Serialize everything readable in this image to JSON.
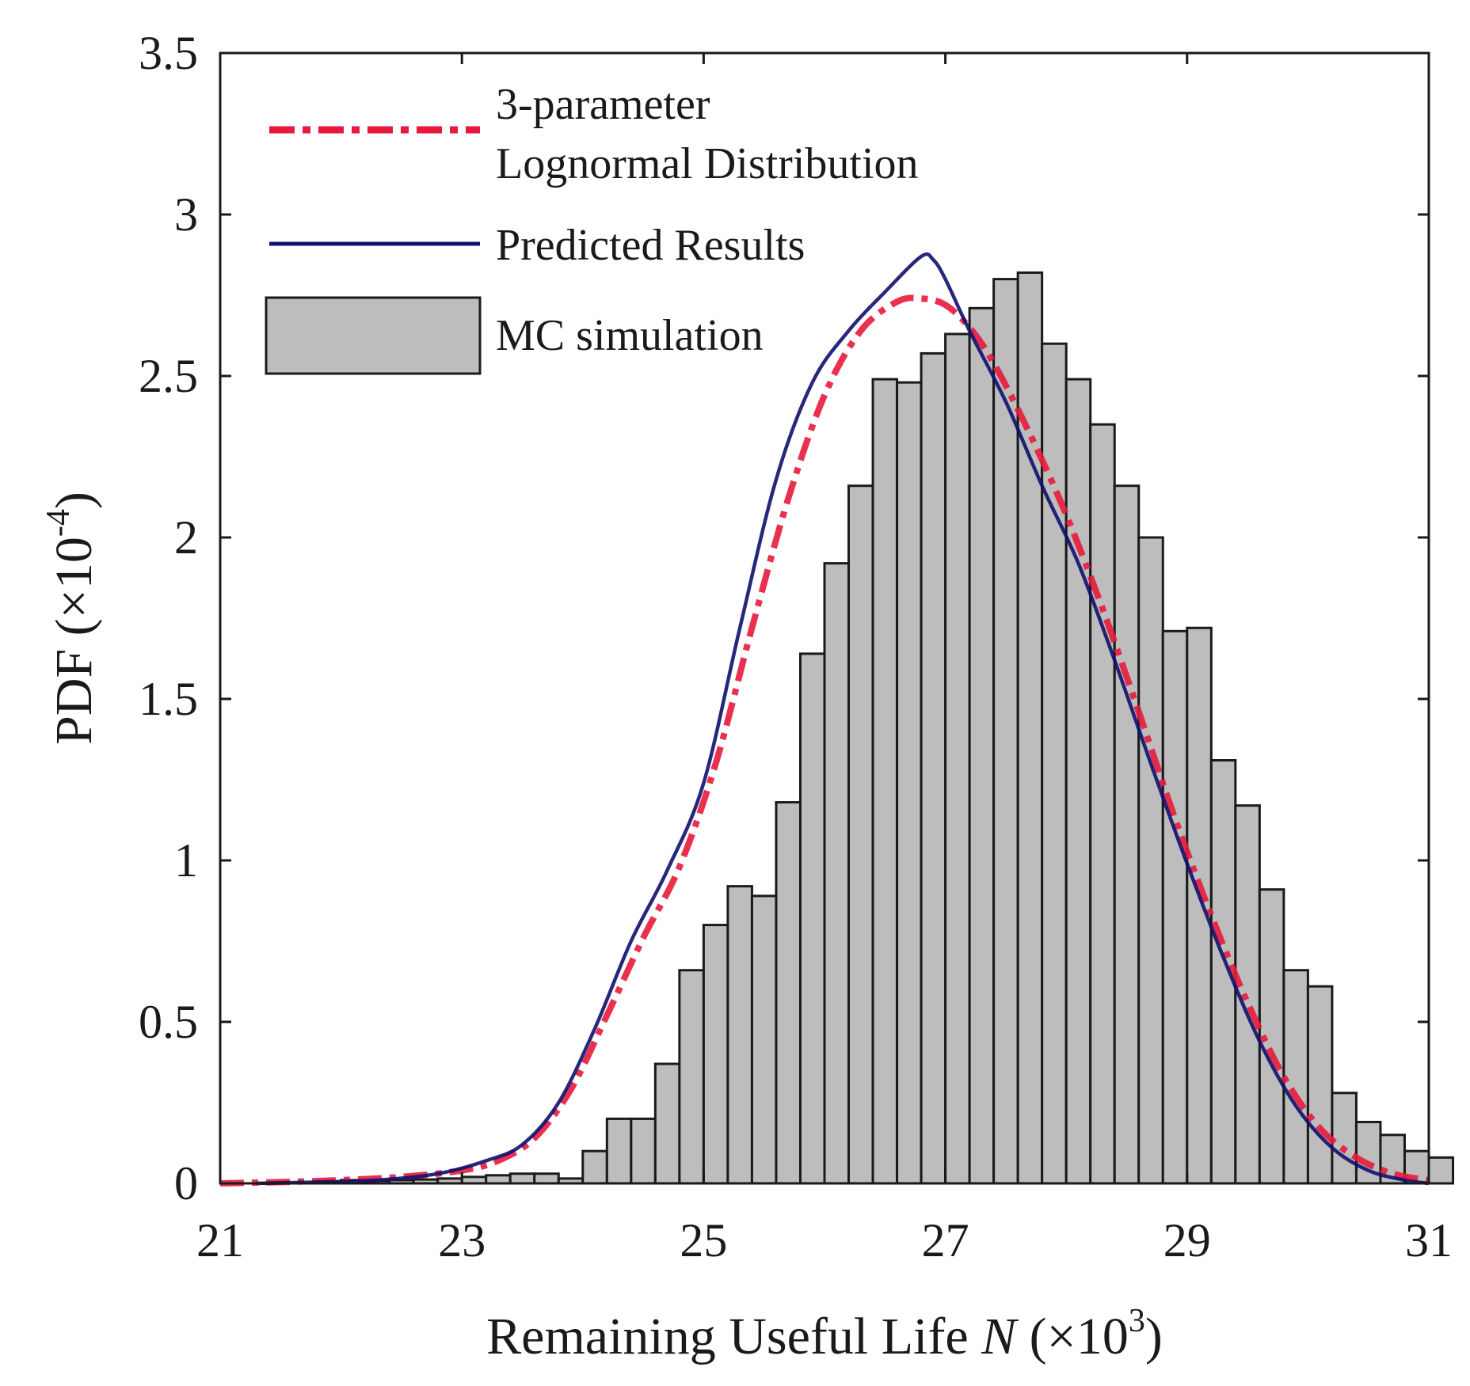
{
  "chart_data": {
    "type": "histogram",
    "xlabel": {
      "text": "Remaining Useful Life",
      "variable": "N",
      "unit_open": "(×10",
      "exponent": "3",
      "unit_close": ")"
    },
    "ylabel": {
      "text": "PDF",
      "unit_open": "(×10",
      "exponent": "-4",
      "unit_close": ")"
    },
    "xlim": [
      21,
      31
    ],
    "ylim": [
      0,
      3.5
    ],
    "x_ticks": [
      "21",
      "23",
      "25",
      "27",
      "29",
      "31"
    ],
    "x_tick_values": [
      21,
      23,
      25,
      27,
      29,
      31
    ],
    "y_ticks": [
      "0",
      "0.5",
      "1",
      "1.5",
      "2",
      "2.5",
      "3",
      "3.5"
    ],
    "y_tick_values": [
      0,
      0.5,
      1,
      1.5,
      2,
      2.5,
      3,
      3.5
    ],
    "legend": {
      "position": "top-left",
      "entries": [
        {
          "id": "lognormal",
          "lines": [
            "3-parameter",
            "Lognormal Distribution"
          ],
          "style": "dash-dot",
          "color": "#e8193c"
        },
        {
          "id": "predicted",
          "lines": [
            "Predicted Results"
          ],
          "style": "solid",
          "color": "#10106e"
        },
        {
          "id": "mc",
          "lines": [
            "MC simulation"
          ],
          "style": "patch",
          "color": "#bdbdbd"
        }
      ]
    },
    "histogram": {
      "name": "MC simulation",
      "bin_start": 21.0,
      "bin_width": 0.2,
      "values": [
        0,
        0,
        0,
        0,
        0.005,
        0.01,
        0.008,
        0.01,
        0.012,
        0.015,
        0.02,
        0.025,
        0.03,
        0.03,
        0.015,
        0.1,
        0.2,
        0.2,
        0.37,
        0.66,
        0.8,
        0.92,
        0.89,
        1.18,
        1.64,
        1.92,
        2.16,
        2.49,
        2.48,
        2.57,
        2.63,
        2.71,
        2.8,
        2.82,
        2.6,
        2.49,
        2.35,
        2.16,
        2.0,
        1.71,
        1.72,
        1.31,
        1.17,
        0.91,
        0.66,
        0.61,
        0.28,
        0.19,
        0.15,
        0.1,
        0.08,
        0,
        0,
        0,
        0
      ],
      "fill": "#bdbdbd",
      "edge": "#1a1a1a"
    },
    "series": [
      {
        "id": "lognormal",
        "name": "3-parameter Lognormal Distribution",
        "color": "#e8193c",
        "style": "dash-dot",
        "x": [
          21.0,
          21.5,
          22.0,
          22.5,
          23.0,
          23.3,
          23.6,
          23.9,
          24.2,
          24.5,
          24.8,
          25.1,
          25.4,
          25.7,
          26.0,
          26.3,
          26.6,
          26.8,
          27.0,
          27.2,
          27.4,
          27.7,
          28.0,
          28.3,
          28.6,
          28.9,
          29.2,
          29.5,
          29.8,
          30.1,
          30.4,
          30.7,
          31.0
        ],
        "y": [
          0.0,
          0.004,
          0.01,
          0.02,
          0.04,
          0.07,
          0.14,
          0.29,
          0.52,
          0.76,
          0.98,
          1.3,
          1.72,
          2.12,
          2.44,
          2.64,
          2.73,
          2.74,
          2.72,
          2.65,
          2.54,
          2.32,
          2.07,
          1.78,
          1.46,
          1.13,
          0.83,
          0.56,
          0.33,
          0.17,
          0.08,
          0.03,
          0.01
        ]
      },
      {
        "id": "predicted",
        "name": "Predicted Results",
        "color": "#10106e",
        "style": "solid",
        "x": [
          21.3,
          21.8,
          22.3,
          22.8,
          23.2,
          23.5,
          23.8,
          24.1,
          24.4,
          24.7,
          25.0,
          25.3,
          25.6,
          25.9,
          26.2,
          26.5,
          26.8,
          26.9,
          27.0,
          27.2,
          27.5,
          27.8,
          28.1,
          28.4,
          28.7,
          29.0,
          29.3,
          29.6,
          29.9,
          30.2,
          30.5,
          30.8,
          31.0
        ],
        "y": [
          0.0,
          0.004,
          0.01,
          0.03,
          0.07,
          0.12,
          0.25,
          0.48,
          0.75,
          0.97,
          1.24,
          1.72,
          2.18,
          2.48,
          2.64,
          2.76,
          2.87,
          2.86,
          2.8,
          2.64,
          2.42,
          2.16,
          1.92,
          1.62,
          1.3,
          0.99,
          0.7,
          0.44,
          0.24,
          0.11,
          0.04,
          0.01,
          0.0
        ]
      }
    ]
  }
}
